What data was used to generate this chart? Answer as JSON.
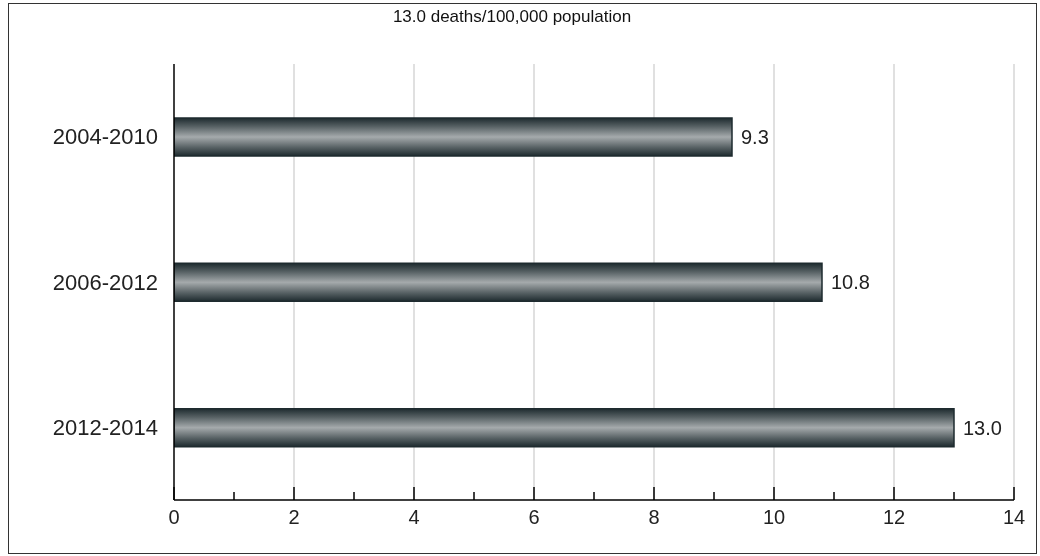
{
  "chart_data": {
    "type": "bar",
    "orientation": "horizontal",
    "title": "13.0 deaths/100,000 population",
    "categories": [
      "2004-2010",
      "2006-2012",
      "2012-2014"
    ],
    "values": [
      9.3,
      10.8,
      13
    ],
    "value_labels": [
      "9.3",
      "10.8",
      "13.0"
    ],
    "color": "#1e2b2f",
    "xlim": [
      0,
      14
    ],
    "xticks": [
      0,
      {
        "value": 1,
        "label": null
      },
      2,
      {
        "value": 3,
        "label": null
      },
      4,
      {
        "value": 5,
        "label": null
      },
      6,
      {
        "value": 7,
        "label": null
      },
      8,
      {
        "value": 9,
        "label": null
      },
      10,
      {
        "value": 11,
        "label": null
      },
      12,
      {
        "value": 13,
        "label": null
      },
      14
    ],
    "grid": "x"
  }
}
